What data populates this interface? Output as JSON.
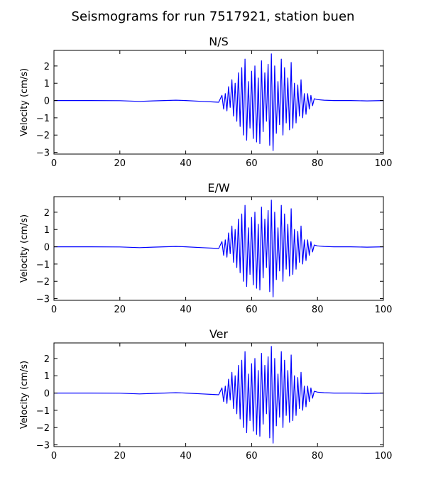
{
  "figure": {
    "title": "Seismograms for run 7517921, station buen"
  },
  "chart_data": [
    {
      "type": "line",
      "title": "N/S",
      "xlabel": "",
      "ylabel": "Velocity (cm/s)",
      "xlim": [
        0,
        100
      ],
      "ylim": [
        -3.1,
        2.9
      ],
      "xticks": [
        0,
        20,
        40,
        60,
        80,
        100
      ],
      "yticks": [
        -3,
        -2,
        -1,
        0,
        1,
        2
      ],
      "grid": false,
      "color": "#0000ff",
      "series": [
        {
          "x": [
            0,
            10,
            20,
            26,
            30,
            37,
            40,
            45,
            48,
            50,
            51,
            51.5,
            52,
            52.5,
            53,
            53.5,
            54,
            54.5,
            55,
            55.5,
            56,
            56.5,
            57,
            57.5,
            58,
            58.5,
            59,
            59.5,
            60,
            60.5,
            61,
            61.5,
            62,
            62.5,
            63,
            63.5,
            64,
            64.5,
            65,
            65.5,
            66,
            66.5,
            67,
            67.5,
            68,
            68.5,
            69,
            69.5,
            70,
            70.5,
            71,
            71.5,
            72,
            72.5,
            73,
            73.5,
            74,
            74.5,
            75,
            75.5,
            76,
            76.5,
            77,
            77.5,
            78,
            78.5,
            79,
            80,
            82,
            85,
            90,
            95,
            100
          ],
          "y": [
            0,
            0,
            -0.01,
            -0.05,
            -0.02,
            0.02,
            0,
            -0.05,
            -0.08,
            -0.1,
            0.3,
            -0.5,
            0.4,
            -0.6,
            0.8,
            -0.4,
            1.2,
            -0.9,
            1.0,
            -1.2,
            1.6,
            -1.5,
            1.9,
            -2.0,
            2.4,
            -2.3,
            1.1,
            -1.6,
            1.7,
            -2.2,
            2.0,
            -2.4,
            1.3,
            -2.5,
            2.3,
            -1.8,
            1.6,
            -1.2,
            2.1,
            -2.6,
            2.7,
            -2.9,
            2.0,
            -1.9,
            1.1,
            -1.4,
            2.4,
            -2.0,
            1.9,
            -1.3,
            1.3,
            -1.7,
            2.2,
            -1.6,
            1.0,
            -1.3,
            0.9,
            -0.9,
            1.2,
            -1.0,
            0.4,
            -0.8,
            0.4,
            -0.5,
            0.3,
            -0.3,
            0.1,
            0.05,
            0.02,
            0,
            0,
            -0.02,
            0
          ]
        }
      ]
    },
    {
      "type": "line",
      "title": "E/W",
      "xlabel": "",
      "ylabel": "Velocity (cm/s)",
      "xlim": [
        0,
        100
      ],
      "ylim": [
        -3.1,
        2.9
      ],
      "xticks": [
        0,
        20,
        40,
        60,
        80,
        100
      ],
      "yticks": [
        -3,
        -2,
        -1,
        0,
        1,
        2
      ],
      "grid": false,
      "color": "#0000ff",
      "series": [
        {
          "x": [
            0,
            10,
            20,
            26,
            30,
            37,
            40,
            45,
            48,
            50,
            51,
            51.5,
            52,
            52.5,
            53,
            53.5,
            54,
            54.5,
            55,
            55.5,
            56,
            56.5,
            57,
            57.5,
            58,
            58.5,
            59,
            59.5,
            60,
            60.5,
            61,
            61.5,
            62,
            62.5,
            63,
            63.5,
            64,
            64.5,
            65,
            65.5,
            66,
            66.5,
            67,
            67.5,
            68,
            68.5,
            69,
            69.5,
            70,
            70.5,
            71,
            71.5,
            72,
            72.5,
            73,
            73.5,
            74,
            74.5,
            75,
            75.5,
            76,
            76.5,
            77,
            77.5,
            78,
            78.5,
            79,
            80,
            82,
            85,
            90,
            95,
            100
          ],
          "y": [
            0,
            0,
            -0.01,
            -0.05,
            -0.02,
            0.02,
            0,
            -0.05,
            -0.08,
            -0.1,
            0.3,
            -0.5,
            0.4,
            -0.6,
            0.8,
            -0.4,
            1.2,
            -0.9,
            1.0,
            -1.2,
            1.6,
            -1.5,
            1.9,
            -2.0,
            2.4,
            -2.3,
            1.1,
            -1.6,
            1.7,
            -2.2,
            2.0,
            -2.4,
            1.3,
            -2.5,
            2.3,
            -1.8,
            1.6,
            -1.2,
            2.1,
            -2.6,
            2.7,
            -2.9,
            2.0,
            -1.9,
            1.1,
            -1.4,
            2.4,
            -2.0,
            1.9,
            -1.3,
            1.3,
            -1.7,
            2.2,
            -1.6,
            1.0,
            -1.3,
            0.9,
            -0.9,
            1.2,
            -1.0,
            0.4,
            -0.8,
            0.4,
            -0.5,
            0.3,
            -0.3,
            0.1,
            0.05,
            0.02,
            0,
            0,
            -0.02,
            0
          ]
        }
      ]
    },
    {
      "type": "line",
      "title": "Ver",
      "xlabel": "",
      "ylabel": "Velocity (cm/s)",
      "xlim": [
        0,
        100
      ],
      "ylim": [
        -3.1,
        2.9
      ],
      "xticks": [
        0,
        20,
        40,
        60,
        80,
        100
      ],
      "yticks": [
        -3,
        -2,
        -1,
        0,
        1,
        2
      ],
      "grid": false,
      "color": "#0000ff",
      "series": [
        {
          "x": [
            0,
            10,
            20,
            26,
            30,
            37,
            40,
            45,
            48,
            50,
            51,
            51.5,
            52,
            52.5,
            53,
            53.5,
            54,
            54.5,
            55,
            55.5,
            56,
            56.5,
            57,
            57.5,
            58,
            58.5,
            59,
            59.5,
            60,
            60.5,
            61,
            61.5,
            62,
            62.5,
            63,
            63.5,
            64,
            64.5,
            65,
            65.5,
            66,
            66.5,
            67,
            67.5,
            68,
            68.5,
            69,
            69.5,
            70,
            70.5,
            71,
            71.5,
            72,
            72.5,
            73,
            73.5,
            74,
            74.5,
            75,
            75.5,
            76,
            76.5,
            77,
            77.5,
            78,
            78.5,
            79,
            80,
            82,
            85,
            90,
            95,
            100
          ],
          "y": [
            0,
            0,
            -0.01,
            -0.05,
            -0.02,
            0.02,
            0,
            -0.05,
            -0.08,
            -0.1,
            0.3,
            -0.5,
            0.4,
            -0.6,
            0.8,
            -0.4,
            1.2,
            -0.9,
            1.0,
            -1.2,
            1.6,
            -1.5,
            1.9,
            -2.0,
            2.4,
            -2.3,
            1.1,
            -1.6,
            1.7,
            -2.2,
            2.0,
            -2.4,
            1.3,
            -2.5,
            2.3,
            -1.8,
            1.6,
            -1.2,
            2.1,
            -2.6,
            2.7,
            -2.9,
            2.0,
            -1.9,
            1.1,
            -1.4,
            2.4,
            -2.0,
            1.9,
            -1.3,
            1.3,
            -1.7,
            2.2,
            -1.6,
            1.0,
            -1.3,
            0.9,
            -0.9,
            1.2,
            -1.0,
            0.4,
            -0.8,
            0.4,
            -0.5,
            0.3,
            -0.3,
            0.1,
            0.05,
            0.02,
            0,
            0,
            -0.02,
            0
          ]
        }
      ]
    }
  ]
}
